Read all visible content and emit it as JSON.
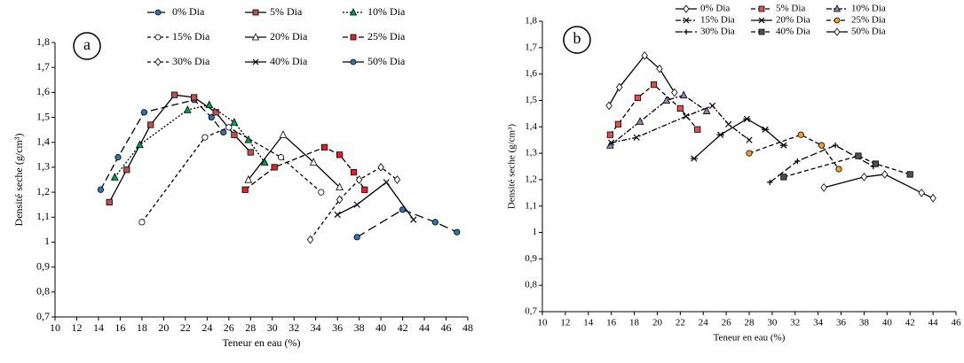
{
  "chart_data": [
    {
      "type": "line",
      "annotation": "a",
      "x_label": "Teneur en eau (%)",
      "y_label": "Densité  seche (g/cm³)",
      "xlim": [
        10,
        48
      ],
      "xticks": [
        10,
        12,
        14,
        16,
        18,
        20,
        22,
        24,
        26,
        28,
        30,
        32,
        34,
        36,
        38,
        40,
        42,
        44,
        46,
        48
      ],
      "ylim": [
        0.7,
        1.8
      ],
      "yticks": [
        {
          "value": 0.7,
          "label": "0,7"
        },
        {
          "value": 0.8,
          "label": "0,8"
        },
        {
          "value": 0.9,
          "label": "0,9"
        },
        1,
        {
          "value": 1.1,
          "label": "1,1"
        },
        {
          "value": 1.2,
          "label": "1,2"
        },
        {
          "value": 1.3,
          "label": "1,3"
        },
        {
          "value": 1.4,
          "label": "1,4"
        },
        {
          "value": 1.5,
          "label": "1,5"
        },
        {
          "value": 1.6,
          "label": "1,6"
        },
        {
          "value": 1.7,
          "label": "1,7"
        },
        {
          "value": 1.8,
          "label": "1,8"
        }
      ],
      "line_color": "#000000",
      "series": [
        {
          "name": "0% Dia",
          "color": "#2e75b6",
          "marker": "circle",
          "dash": "8,4",
          "x": [
            14.2,
            15.8,
            18.2,
            22.8,
            24.4,
            25.5
          ],
          "values": [
            1.21,
            1.34,
            1.52,
            1.57,
            1.5,
            1.44
          ]
        },
        {
          "name": "5% Dia",
          "color": "#c0504d",
          "marker": "square",
          "dash": "",
          "x": [
            15,
            16.6,
            18.8,
            21,
            22.8,
            24.8,
            26.5,
            28
          ],
          "values": [
            1.16,
            1.29,
            1.47,
            1.59,
            1.58,
            1.52,
            1.43,
            1.36
          ]
        },
        {
          "name": "10% Dia",
          "color": "#00a050",
          "marker": "triangle",
          "dash": "2,2",
          "x": [
            15.5,
            17.8,
            22.2,
            24.2,
            26.5,
            27.8,
            29.3
          ],
          "values": [
            1.26,
            1.39,
            1.53,
            1.55,
            1.48,
            1.41,
            1.32
          ]
        },
        {
          "name": "15% Dia",
          "color": "#ffffff",
          "marker": "circle",
          "dash": "4,3",
          "x": [
            18,
            23.8,
            26,
            30.8,
            34.5
          ],
          "values": [
            1.08,
            1.42,
            1.46,
            1.34,
            1.2
          ]
        },
        {
          "name": "20% Dia",
          "color": "#ffffff",
          "marker": "triangle",
          "dash": "",
          "x": [
            27.8,
            31,
            33.8,
            36.2
          ],
          "values": [
            1.25,
            1.43,
            1.32,
            1.22
          ]
        },
        {
          "name": "25% Dia",
          "color": "#e0202a",
          "marker": "square",
          "dash": "6,3",
          "x": [
            27.5,
            30.2,
            34.8,
            36.2,
            37.5,
            38.5
          ],
          "values": [
            1.21,
            1.3,
            1.38,
            1.35,
            1.28,
            1.21
          ]
        },
        {
          "name": "30% Dia",
          "color": "#ffffff",
          "marker": "diamond",
          "dash": "4,3",
          "x": [
            33.5,
            36.2,
            38,
            40,
            41.5
          ],
          "values": [
            1.01,
            1.17,
            1.25,
            1.3,
            1.25
          ]
        },
        {
          "name": "40% Dia",
          "color": "#000000",
          "marker": "x",
          "dash": "",
          "x": [
            36,
            37.8,
            40.5,
            43
          ],
          "values": [
            1.11,
            1.15,
            1.24,
            1.09
          ]
        },
        {
          "name": "50% Dia",
          "color": "#2e75b6",
          "marker": "circle",
          "dash": "10,5",
          "x": [
            37.8,
            42,
            45,
            47
          ],
          "values": [
            1.02,
            1.13,
            1.08,
            1.04
          ]
        }
      ]
    },
    {
      "type": "line",
      "annotation": "b",
      "x_label": "Teneur en eau (%)",
      "y_label": "Densité  seche (g/cm³)",
      "xlim": [
        10,
        46
      ],
      "xticks": [
        10,
        12,
        14,
        16,
        18,
        20,
        22,
        24,
        26,
        28,
        30,
        32,
        34,
        36,
        38,
        40,
        42,
        44,
        46
      ],
      "ylim": [
        0.7,
        1.8
      ],
      "yticks": [
        {
          "value": 0.7,
          "label": "0,7"
        },
        {
          "value": 0.8,
          "label": "0,8"
        },
        {
          "value": 0.9,
          "label": "0,9"
        },
        1,
        {
          "value": 1.1,
          "label": "1,1"
        },
        {
          "value": 1.2,
          "label": "1,2"
        },
        {
          "value": 1.3,
          "label": "1,3"
        },
        {
          "value": 1.4,
          "label": "1,4"
        },
        {
          "value": 1.5,
          "label": "1,5"
        },
        {
          "value": 1.6,
          "label": "1,6"
        },
        {
          "value": 1.7,
          "label": "1,7"
        },
        {
          "value": 1.8,
          "label": "1,8"
        }
      ],
      "line_color": "#000000",
      "series": [
        {
          "name": "0% Dia",
          "color": "#ffffff",
          "marker": "diamond",
          "dash": "",
          "x": [
            15.8,
            16.7,
            18.9,
            20.2,
            21.5
          ],
          "values": [
            1.48,
            1.55,
            1.67,
            1.62,
            1.53
          ]
        },
        {
          "name": "5% Dia",
          "color": "#d9534f",
          "marker": "square",
          "dash": "5,3",
          "x": [
            15.9,
            16.6,
            18.3,
            19.7,
            22,
            23.5
          ],
          "values": [
            1.37,
            1.41,
            1.51,
            1.56,
            1.47,
            1.39
          ]
        },
        {
          "name": "10% Dia",
          "color": "#9b7fbf",
          "marker": "triangle",
          "dash": "6,2,2,2",
          "x": [
            15.9,
            18.5,
            20.8,
            22.3,
            24.3
          ],
          "values": [
            1.33,
            1.42,
            1.5,
            1.52,
            1.46
          ]
        },
        {
          "name": "15% Dia",
          "color": "#000000",
          "marker": "x",
          "dash": "6,2,2,2",
          "x": [
            16,
            18.2,
            22.5,
            24.8,
            26.2,
            28
          ],
          "values": [
            1.34,
            1.36,
            1.44,
            1.48,
            1.41,
            1.35
          ]
        },
        {
          "name": "20% Dia",
          "color": "#000000",
          "marker": "star",
          "dash": "",
          "x": [
            23.2,
            25.5,
            27.8,
            29.4,
            31
          ],
          "values": [
            1.28,
            1.37,
            1.43,
            1.39,
            1.33
          ]
        },
        {
          "name": "25% Dia",
          "color": "#f0a030",
          "marker": "circle",
          "dash": "5,3",
          "x": [
            28,
            32.5,
            34.3,
            35.8
          ],
          "values": [
            1.3,
            1.37,
            1.33,
            1.24
          ]
        },
        {
          "name": "30% Dia",
          "color": "#000000",
          "marker": "plus",
          "dash": "8,3",
          "x": [
            29.8,
            32.2,
            35.5,
            38.8
          ],
          "values": [
            1.19,
            1.27,
            1.33,
            1.25
          ]
        },
        {
          "name": "40% Dia",
          "color": "#505050",
          "marker": "square",
          "dash": "5,3",
          "x": [
            31,
            37.5,
            39,
            42
          ],
          "values": [
            1.21,
            1.29,
            1.26,
            1.22
          ]
        },
        {
          "name": "50% Dia",
          "color": "#ffffff",
          "marker": "diamond",
          "dash": "",
          "x": [
            34.5,
            38,
            39.8,
            43,
            44
          ],
          "values": [
            1.17,
            1.21,
            1.22,
            1.15,
            1.13
          ]
        }
      ]
    }
  ]
}
